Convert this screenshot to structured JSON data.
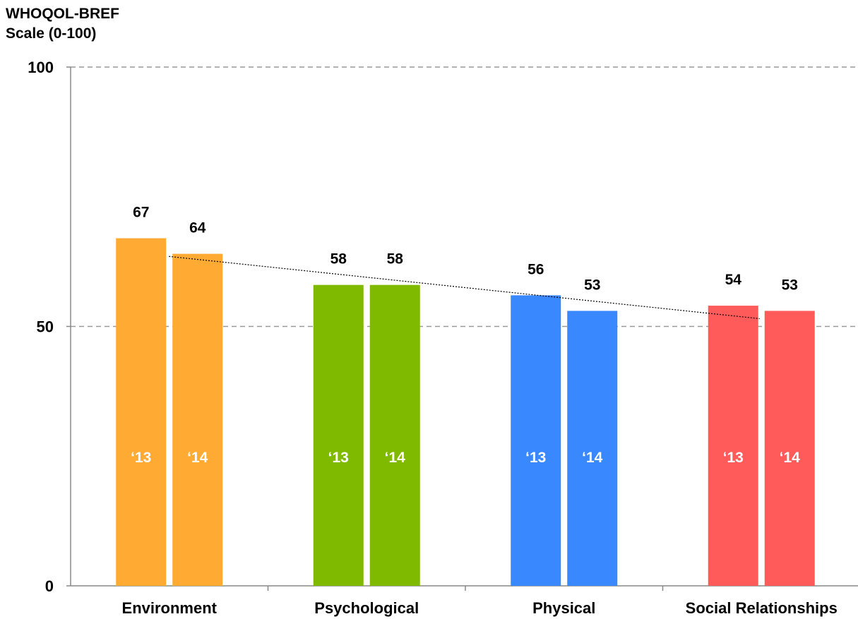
{
  "chart_data": {
    "type": "bar",
    "ylabel": [
      "WHOQOL-BREF",
      "Scale (0-100)"
    ],
    "ylim": [
      0,
      100
    ],
    "yticks": [
      "0",
      "50",
      "100"
    ],
    "categories": [
      "Environment",
      "Psychological",
      "Physical",
      "Social Relationships"
    ],
    "series": [
      {
        "name": "‘13",
        "values": [
          67,
          58,
          56,
          54
        ]
      },
      {
        "name": "‘14",
        "values": [
          64,
          58,
          53,
          53
        ]
      }
    ],
    "category_colors": [
      "#FFAA33",
      "#7FBA00",
      "#3A88FE",
      "#FF5B5B"
    ],
    "grid": "dashed at 50 and 100",
    "trendline": {
      "style": "dotted",
      "from": [
        "Environment",
        "‘14",
        63.5
      ],
      "to": [
        "Social Relationships",
        "‘13",
        51.5
      ]
    }
  }
}
